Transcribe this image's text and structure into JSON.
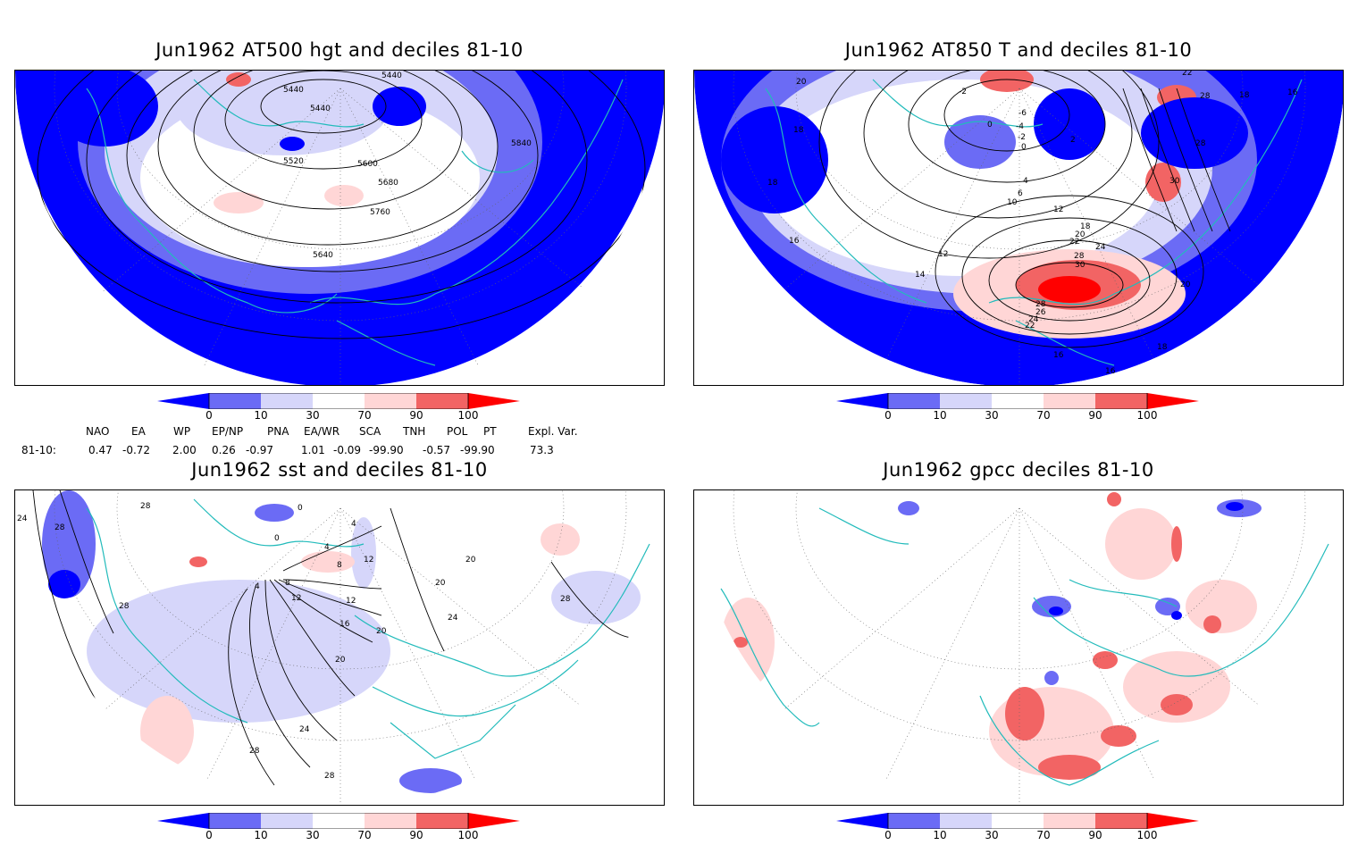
{
  "panels": {
    "hgt": {
      "title": "Jun1962 AT500 hgt and deciles 81-10",
      "contour_labels": [
        "5440",
        "5440",
        "5440",
        "5520",
        "5600",
        "5680",
        "5760",
        "5840",
        "5640"
      ]
    },
    "t850": {
      "title": "Jun1962 AT850 T and deciles 81-10",
      "contour_labels": [
        "20",
        "-2",
        "22",
        "28",
        "16",
        "18",
        "0",
        "-6",
        "-4",
        "-2",
        "0",
        "2",
        "28",
        "18",
        "18",
        "16",
        "12",
        "14",
        "4",
        "6",
        "10",
        "12",
        "18",
        "20",
        "22",
        "24",
        "28",
        "30",
        "30",
        "28",
        "26",
        "24",
        "22",
        "20",
        "16",
        "18",
        "16"
      ]
    },
    "sst": {
      "title": "Jun1962 sst and deciles 81-10",
      "contour_labels": [
        "24",
        "28",
        "28",
        "0",
        "4",
        "0",
        "4",
        "8",
        "12",
        "4",
        "8",
        "12",
        "12",
        "16",
        "20",
        "20",
        "20",
        "24",
        "28",
        "28",
        "20",
        "24",
        "28",
        "28"
      ]
    },
    "gpcc": {
      "title": "Jun1962 gpcc deciles 81-10",
      "contour_labels": []
    }
  },
  "colorbar": {
    "labels": [
      "0",
      "10",
      "30",
      "70",
      "90",
      "100"
    ],
    "colors": [
      "#0000ff",
      "#6b6bf5",
      "#d6d6fa",
      "#ffffff",
      "#ffd6d6",
      "#f26464",
      "#ff0000"
    ]
  },
  "indices": {
    "headers": [
      "NAO",
      "EA",
      "WP",
      "EP/NP",
      "PNA",
      "EA/WR",
      "SCA",
      "TNH",
      "POL",
      "PT",
      "Expl. Var."
    ],
    "row_label": "81-10:",
    "values": [
      "0.47",
      "-0.72",
      "2.00",
      "0.26",
      "-0.97",
      "1.01",
      "-0.09",
      "-99.90",
      "-0.57",
      "-99.90",
      "73.3"
    ]
  }
}
